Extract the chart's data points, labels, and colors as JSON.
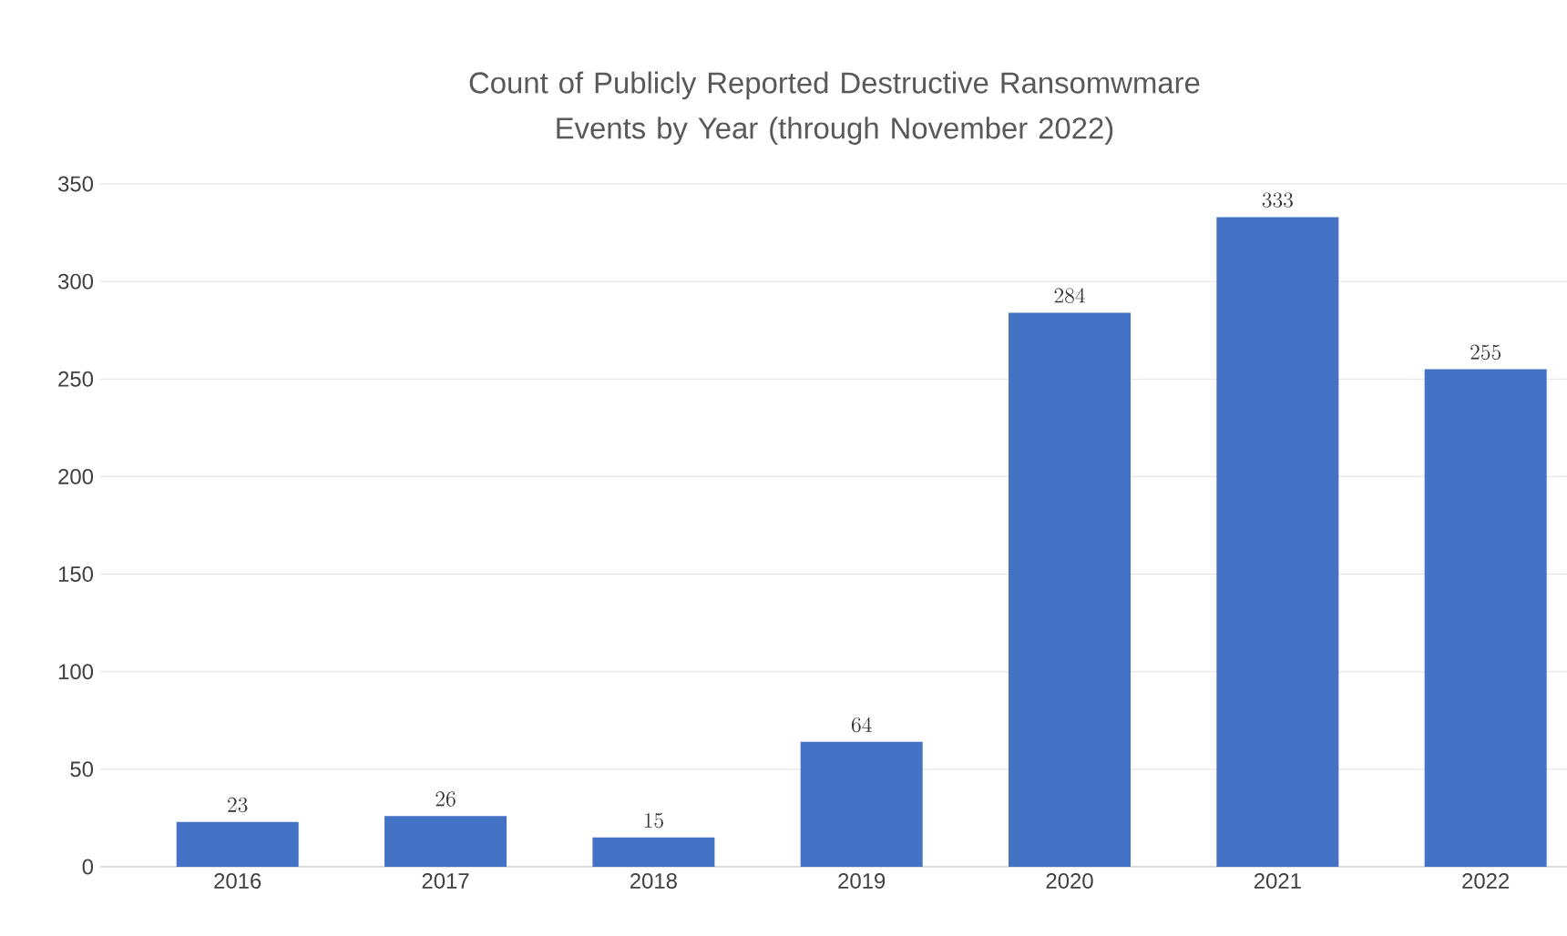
{
  "chart_data": {
    "type": "bar",
    "title": "Count of Publicly Reported Destructive Ransomwmare Events by Year (through November 2022)",
    "categories": [
      "2016",
      "2017",
      "2018",
      "2019",
      "2020",
      "2021",
      "2022"
    ],
    "values": [
      23,
      26,
      15,
      64,
      284,
      333,
      255
    ],
    "color": "#4472c4",
    "ylim": [
      0,
      350
    ],
    "yticks": [
      0,
      50,
      100,
      150,
      200,
      250,
      300,
      350
    ],
    "grid": "y",
    "data_labels": true
  }
}
